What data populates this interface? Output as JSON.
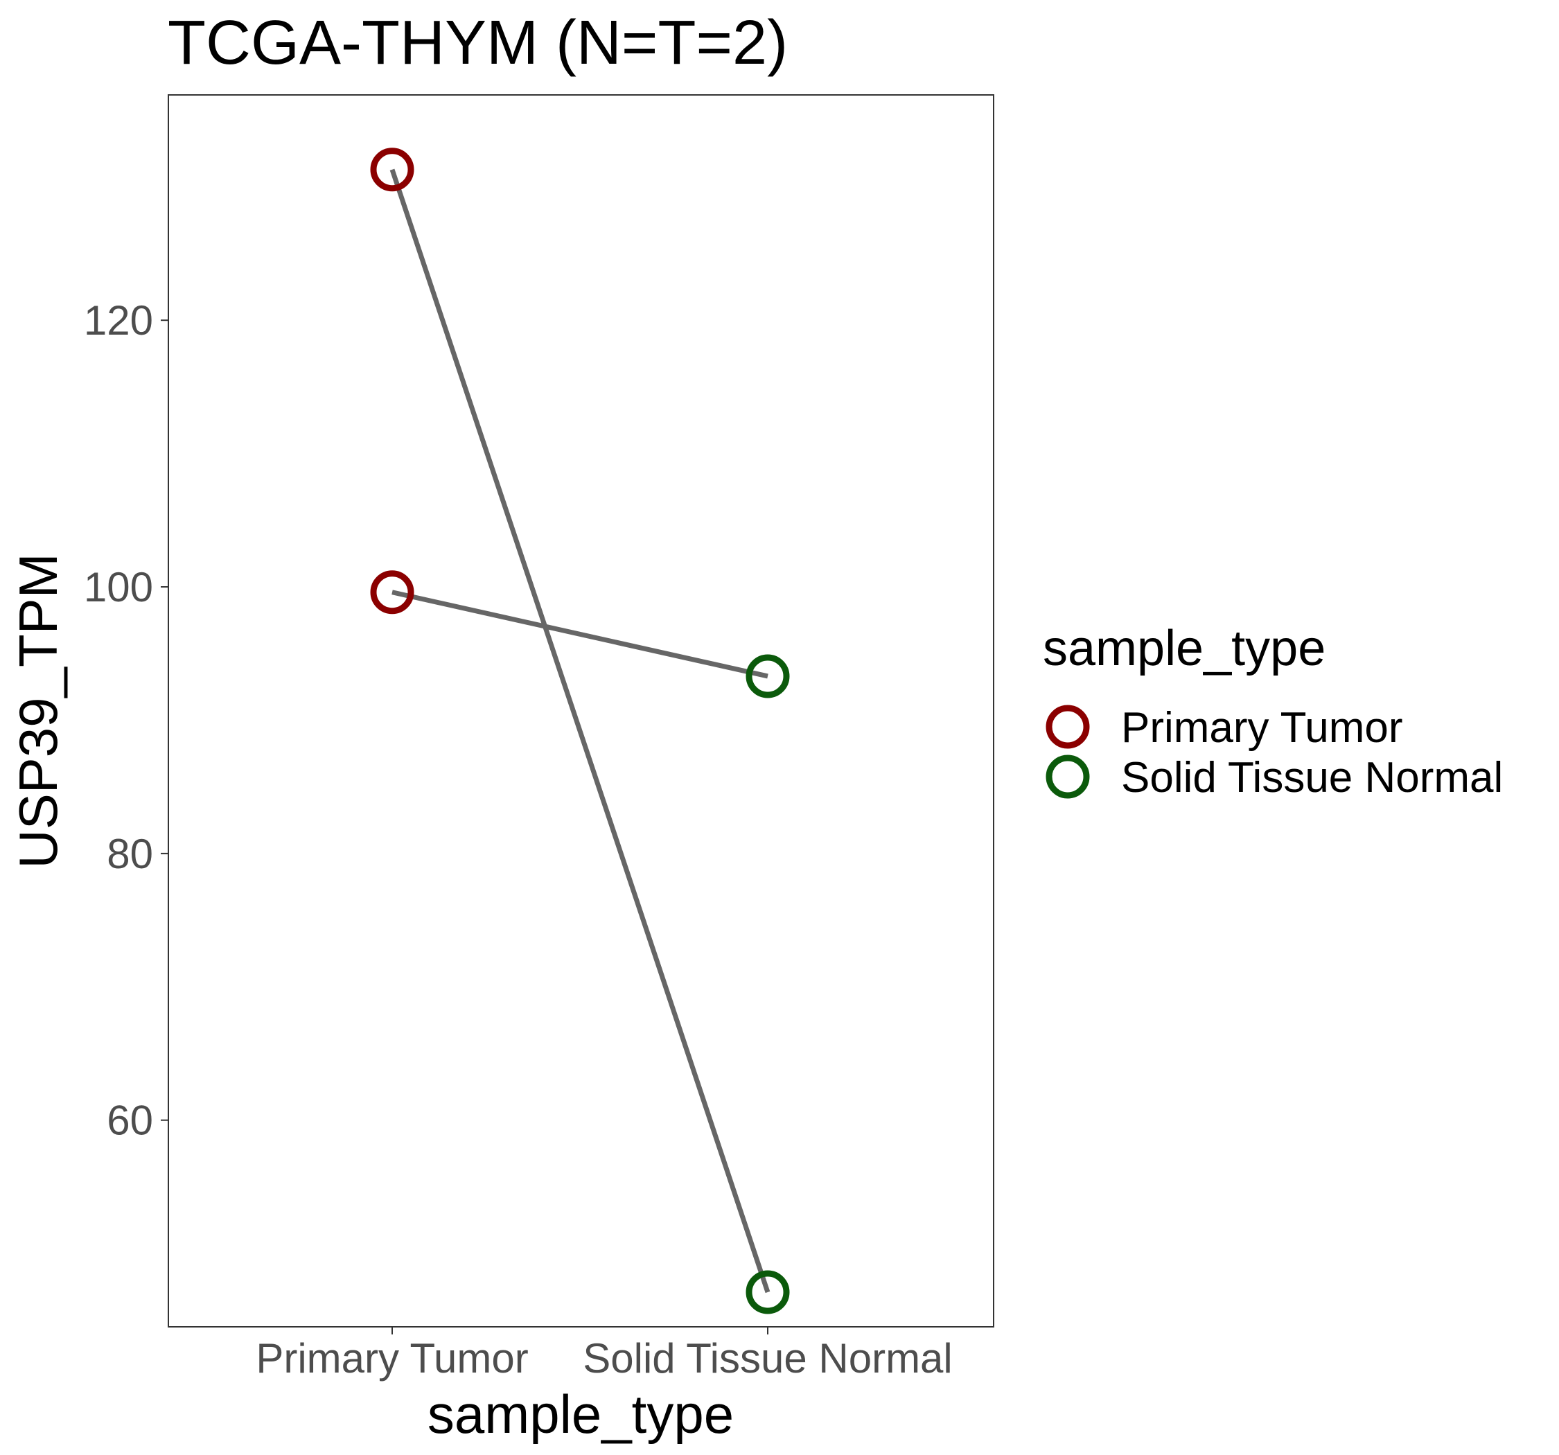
{
  "chart_data": {
    "type": "line",
    "title": "TCGA-THYM  (N=T=2)",
    "xlabel": "sample_type",
    "ylabel": "USP39_TPM",
    "categories": [
      "Primary Tumor",
      "Solid Tissue Normal"
    ],
    "yticks": [
      60,
      80,
      100,
      120
    ],
    "ylim": [
      44.5,
      136.9
    ],
    "grid": false,
    "pairs": [
      {
        "values": [
          131.3,
          47.1
        ]
      },
      {
        "values": [
          99.6,
          93.3
        ]
      }
    ],
    "points": [
      {
        "category": "Primary Tumor",
        "value": 131.3,
        "sample_type": "Primary Tumor"
      },
      {
        "category": "Primary Tumor",
        "value": 99.6,
        "sample_type": "Primary Tumor"
      },
      {
        "category": "Solid Tissue Normal",
        "value": 93.3,
        "sample_type": "Solid Tissue Normal"
      },
      {
        "category": "Solid Tissue Normal",
        "value": 47.1,
        "sample_type": "Solid Tissue Normal"
      }
    ],
    "line_color": "#666666",
    "legend": {
      "title": "sample_type",
      "position": "right",
      "entries": [
        {
          "label": "Primary Tumor",
          "color": "#8b0000"
        },
        {
          "label": "Solid Tissue Normal",
          "color": "#0b5a0b"
        }
      ]
    }
  }
}
